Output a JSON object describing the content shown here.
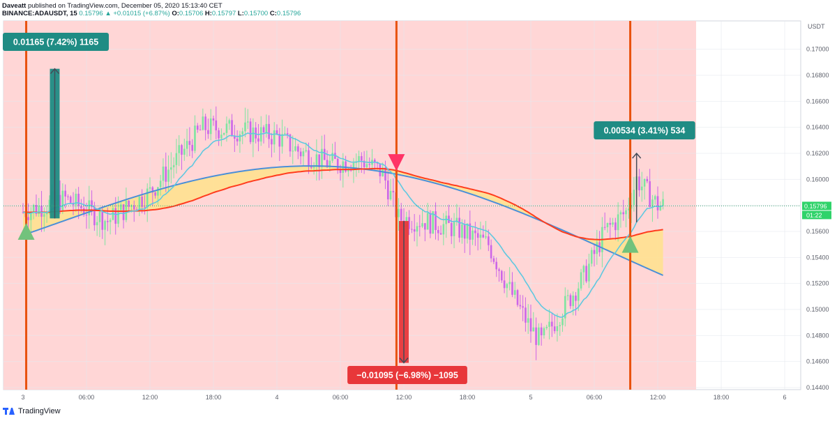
{
  "header": {
    "author": "Daveatt",
    "published": "published on TradingView.com, December 05, 2020 15:13:40 CET",
    "symbol": "BINANCE:ADAUSDT, 15",
    "last": "0.15796",
    "change": "▲ +0.01015 (+6.87%)",
    "o_label": "O:",
    "o": "0.15706",
    "h_label": "H:",
    "h": "0.15797",
    "l_label": "L:",
    "l": "0.15700",
    "c_label": "C:",
    "c": "0.15796"
  },
  "footer": {
    "brand": "TradingView"
  },
  "colors": {
    "bg_zone": "#ffd6d6",
    "bull": "#7ee5a0",
    "bear": "#cc66e8",
    "ema_slow": "#ff3c1e",
    "ema_fast": "#5ec8e0",
    "curve": "#4a8fd8",
    "fill": "#ffe28c",
    "vline": "#e8520e",
    "label_up": "#1f8c84",
    "label_down": "#e8373a",
    "triangle_up": "#72c27c",
    "triangle_down": "#ff3366"
  },
  "chart_data": {
    "type": "candlestick",
    "currency": "USDT",
    "ylim": [
      0.144,
      0.171
    ],
    "y_ticks": [
      "0.17000",
      "0.16800",
      "0.16600",
      "0.16400",
      "0.16200",
      "0.16000",
      "0.15800",
      "0.15600",
      "0.15400",
      "0.15200",
      "0.15000",
      "0.14800",
      "0.14600",
      "0.14400"
    ],
    "x_ticks": [
      "3",
      "06:00",
      "12:00",
      "18:00",
      "4",
      "06:00",
      "12:00",
      "18:00",
      "5",
      "06:00",
      "12:00",
      "18:00",
      "6"
    ],
    "last_price": "0.15796",
    "countdown": "01:22",
    "annotations": [
      {
        "text": "0.01165 (7.42%) 1165",
        "direction": "up",
        "from": 0.157,
        "to": 0.1685
      },
      {
        "text": "−0.01095 (−6.98%) −1095",
        "direction": "down",
        "from": 0.1568,
        "to": 0.1459
      },
      {
        "text": "0.00534 (3.41%) 534",
        "direction": "up",
        "from": 0.1567,
        "to": 0.162
      }
    ],
    "signals": [
      {
        "type": "buy",
        "price": 0.156
      },
      {
        "type": "sell",
        "price": 0.1613
      },
      {
        "type": "buy",
        "price": 0.155
      }
    ]
  }
}
